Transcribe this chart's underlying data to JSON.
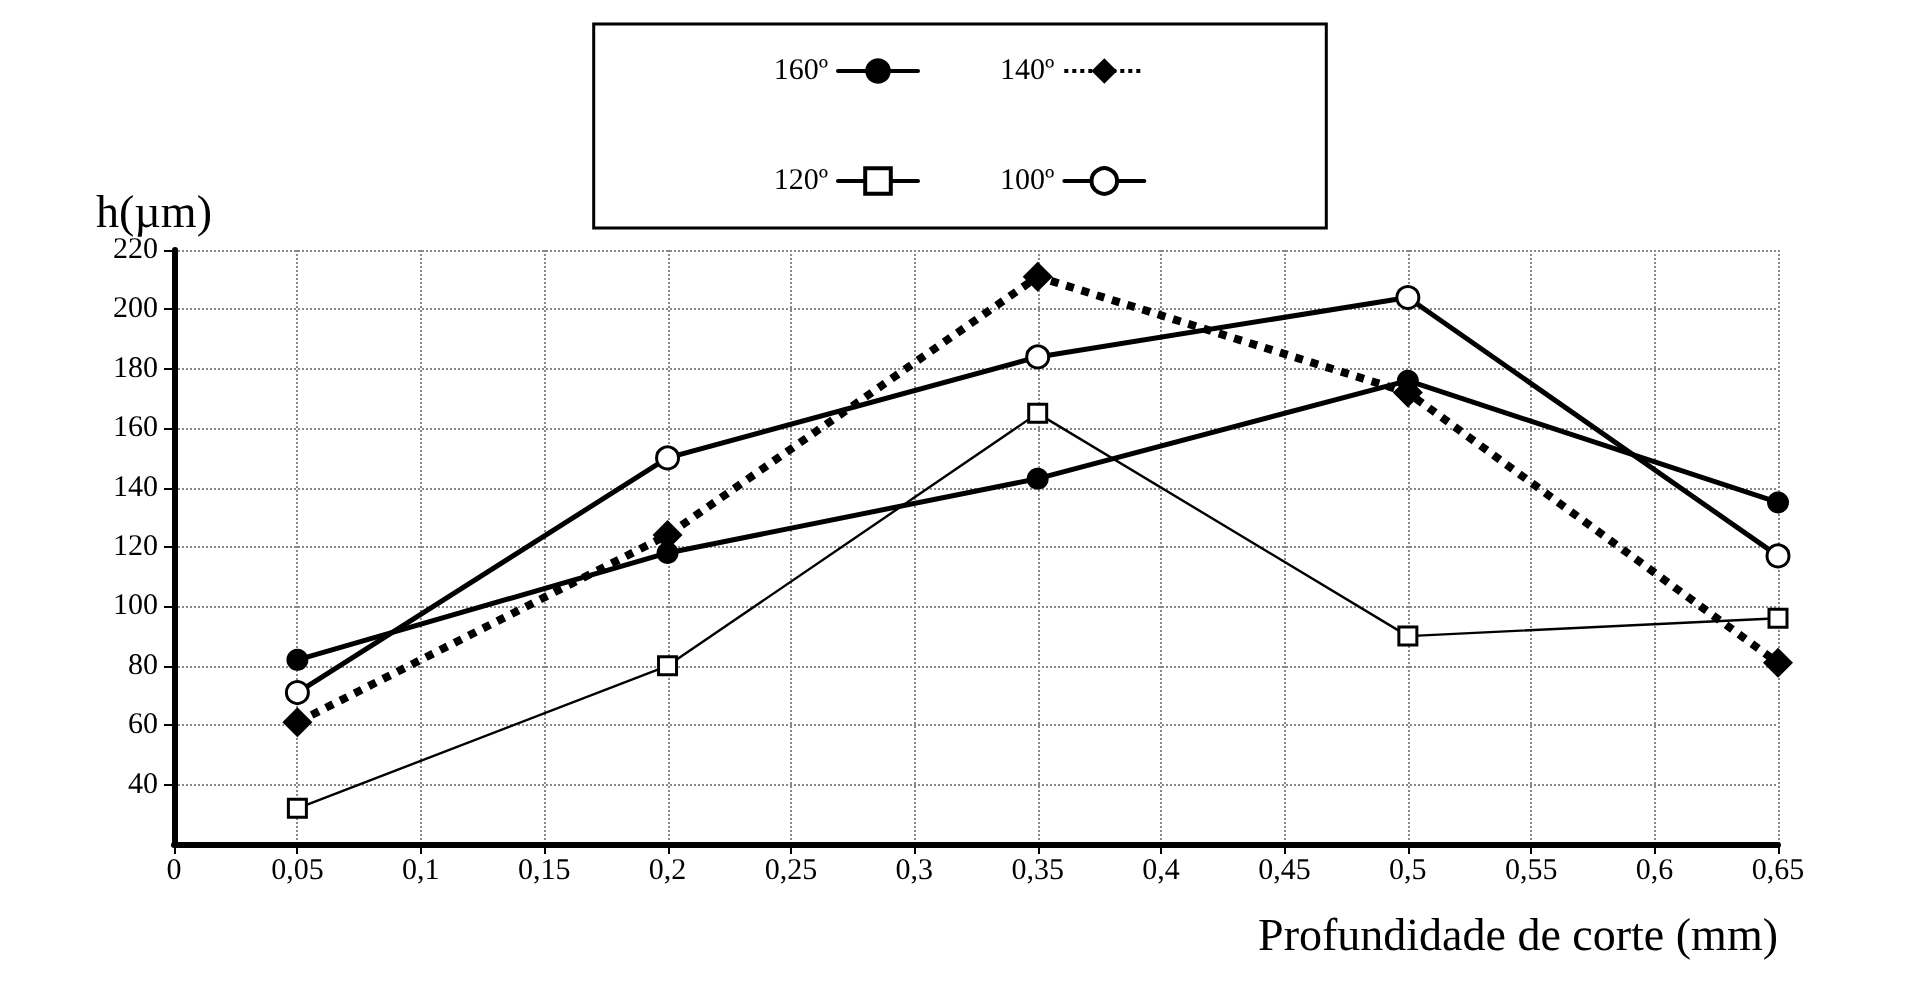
{
  "chart_data": {
    "type": "line",
    "xlabel": "Profundidade de corte (mm)",
    "ylabel": "h(µm)",
    "x": [
      0.05,
      0.2,
      0.35,
      0.5,
      0.65
    ],
    "xlim": [
      0,
      0.65
    ],
    "xticks": [
      {
        "value": 0,
        "label": "0"
      },
      {
        "value": 0.05,
        "label": "0,05"
      },
      {
        "value": 0.1,
        "label": "0,1"
      },
      {
        "value": 0.15,
        "label": "0,15"
      },
      {
        "value": 0.2,
        "label": "0,2"
      },
      {
        "value": 0.25,
        "label": "0,25"
      },
      {
        "value": 0.3,
        "label": "0,3"
      },
      {
        "value": 0.35,
        "label": "0,35"
      },
      {
        "value": 0.4,
        "label": "0,4"
      },
      {
        "value": 0.45,
        "label": "0,45"
      },
      {
        "value": 0.5,
        "label": "0,5"
      },
      {
        "value": 0.55,
        "label": "0,55"
      },
      {
        "value": 0.6,
        "label": "0,6"
      },
      {
        "value": 0.65,
        "label": "0,65"
      }
    ],
    "ylim": [
      20,
      220
    ],
    "yticks": [
      40,
      60,
      80,
      100,
      120,
      140,
      160,
      180,
      200,
      220
    ],
    "grid": true,
    "legend": "top",
    "series": [
      {
        "name": "160º",
        "color": "#000000",
        "marker": "circle",
        "line_style": "solid",
        "values": [
          82,
          118,
          143,
          176,
          135
        ]
      },
      {
        "name": "140º",
        "color": "#000000",
        "marker": "diamond",
        "line_style": "dotted",
        "values": [
          61,
          124,
          211,
          172,
          81
        ]
      },
      {
        "name": "120º",
        "color": "#000000",
        "marker": "square",
        "line_style": "solid",
        "values": [
          32,
          80,
          165,
          90,
          96
        ]
      },
      {
        "name": "100º",
        "color": "#000000",
        "marker": "circle",
        "line_style": "solid",
        "values": [
          71,
          150,
          184,
          204,
          117
        ]
      }
    ]
  }
}
